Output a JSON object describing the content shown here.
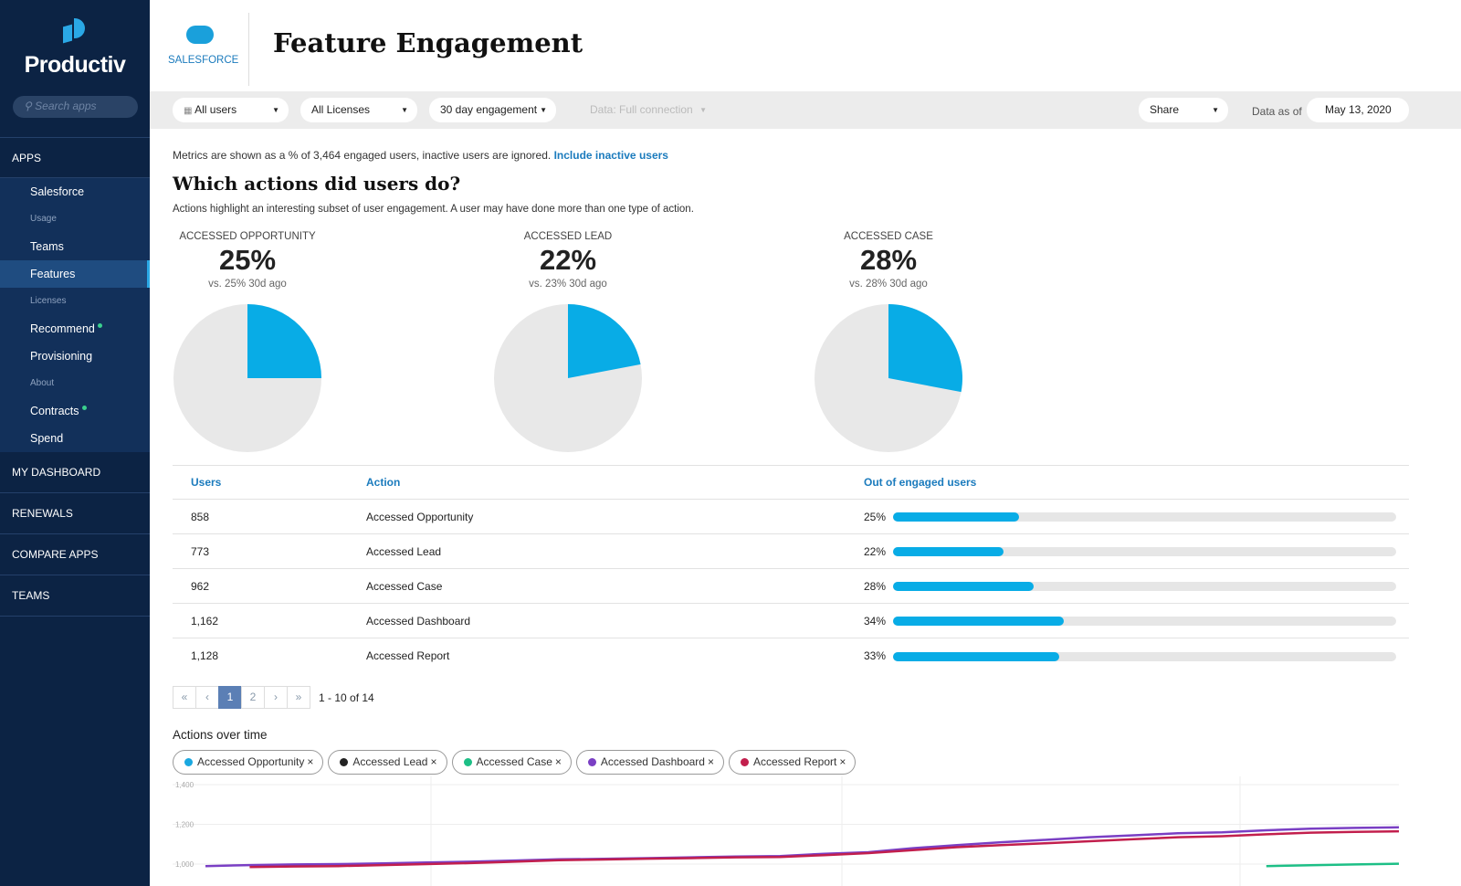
{
  "sidebar": {
    "brand": "Productiv",
    "search_placeholder": "Search apps",
    "apps_label": "APPS",
    "items": [
      {
        "label": "Salesforce",
        "type": "item"
      },
      {
        "label": "Usage",
        "type": "small"
      },
      {
        "label": "Teams",
        "type": "item"
      },
      {
        "label": "Features",
        "type": "item",
        "active": true
      },
      {
        "label": "Licenses",
        "type": "small"
      },
      {
        "label": "Recommend",
        "type": "item",
        "dot": true
      },
      {
        "label": "Provisioning",
        "type": "item"
      },
      {
        "label": "About",
        "type": "small"
      },
      {
        "label": "Contracts",
        "type": "item",
        "dot": true
      },
      {
        "label": "Spend",
        "type": "item"
      }
    ],
    "sections": [
      "MY DASHBOARD",
      "RENEWALS",
      "COMPARE APPS",
      "TEAMS"
    ]
  },
  "header": {
    "app_name": "SALESFORCE",
    "logo_text": "salesforce",
    "title": "Feature Engagement"
  },
  "toolbar": {
    "users": "All users",
    "licenses": "All Licenses",
    "engagement": "30 day engagement",
    "data": "Data: Full connection",
    "share": "Share",
    "data_as_of_label": "Data as of",
    "date": "May 13, 2020"
  },
  "main": {
    "note": "Metrics are shown as a % of 3,464 engaged users, inactive users are ignored.",
    "note_link": "Include inactive users",
    "heading": "Which actions did users do?",
    "desc": "Actions highlight an interesting subset of user engagement. A user may have done more than one type of action.",
    "kpis": [
      {
        "label": "Accessed Opportunity",
        "value": "25%",
        "compare": "vs. 25% 30d ago",
        "fraction": 0.25
      },
      {
        "label": "Accessed Lead",
        "value": "22%",
        "compare": "vs. 23% 30d ago",
        "fraction": 0.22
      },
      {
        "label": "Accessed Case",
        "value": "28%",
        "compare": "vs. 28% 30d ago",
        "fraction": 0.28
      }
    ],
    "table": {
      "headers": [
        "Users",
        "Action",
        "Out of engaged users"
      ],
      "rows": [
        {
          "users": "858",
          "action": "Accessed Opportunity",
          "pct": "25%",
          "fraction": 0.25
        },
        {
          "users": "773",
          "action": "Accessed Lead",
          "pct": "22%",
          "fraction": 0.22
        },
        {
          "users": "962",
          "action": "Accessed Case",
          "pct": "28%",
          "fraction": 0.28
        },
        {
          "users": "1,162",
          "action": "Accessed Dashboard",
          "pct": "34%",
          "fraction": 0.34
        },
        {
          "users": "1,128",
          "action": "Accessed Report",
          "pct": "33%",
          "fraction": 0.33
        }
      ]
    },
    "pager": {
      "pages": [
        "1",
        "2"
      ],
      "current": "1",
      "range": "1 - 10 of 14"
    },
    "actions_title": "Actions over time"
  },
  "colors": {
    "accent": "#08ace6",
    "sidebar": "#0c2344",
    "link": "#1b7bbd"
  },
  "chart_data": {
    "type": "line",
    "yticks": [
      "1,400",
      "1,200",
      "1,000"
    ],
    "ylim": [
      1000,
      1400
    ],
    "series": [
      {
        "name": "Accessed Opportunity",
        "color": "#1aa8e0",
        "values": []
      },
      {
        "name": "Accessed Lead",
        "color": "#222222",
        "values": []
      },
      {
        "name": "Accessed Case",
        "color": "#1dbf86",
        "values": [
          null,
          null,
          null,
          null,
          null,
          null,
          null,
          null,
          null,
          null,
          null,
          null,
          null,
          null,
          null,
          null,
          null,
          null,
          null,
          null,
          null,
          null,
          null,
          null,
          990,
          994,
          998,
          1002
        ]
      },
      {
        "name": "Accessed Dashboard",
        "color": "#7a3fc4",
        "values": [
          990,
          995,
          998,
          1000,
          1003,
          1008,
          1012,
          1018,
          1024,
          1026,
          1030,
          1034,
          1038,
          1040,
          1052,
          1060,
          1080,
          1095,
          1110,
          1122,
          1135,
          1145,
          1155,
          1160,
          1170,
          1178,
          1182,
          1185
        ]
      },
      {
        "name": "Accessed Report",
        "color": "#c21f4d",
        "values": [
          null,
          985,
          988,
          990,
          995,
          1000,
          1005,
          1012,
          1020,
          1023,
          1027,
          1030,
          1034,
          1036,
          1045,
          1055,
          1070,
          1085,
          1095,
          1105,
          1115,
          1125,
          1135,
          1140,
          1150,
          1158,
          1162,
          1165
        ]
      }
    ]
  }
}
